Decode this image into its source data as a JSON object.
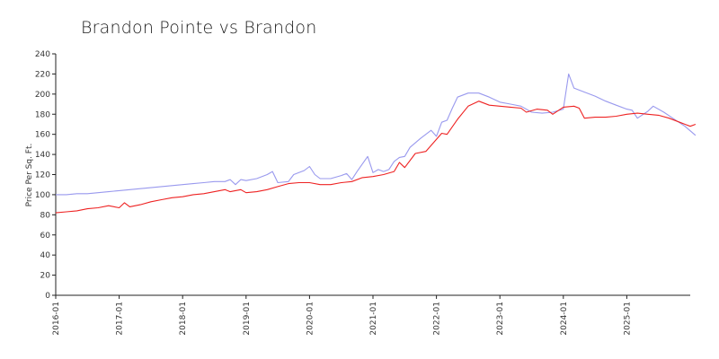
{
  "chart_data": {
    "type": "line",
    "title": "Brandon Pointe vs Brandon",
    "xlabel": "",
    "ylabel": "Price Per Sq. Ft.",
    "ylim": [
      0,
      240
    ],
    "yticks": [
      0,
      20,
      40,
      60,
      80,
      100,
      120,
      140,
      160,
      180,
      200,
      220,
      240
    ],
    "xlim": [
      "2016-01",
      "2026-01"
    ],
    "xticks": [
      "2016-01",
      "2017-01",
      "2018-01",
      "2019-01",
      "2020-01",
      "2021-01",
      "2022-01",
      "2023-01",
      "2024-01",
      "2025-01"
    ],
    "grid": false,
    "legend": "none",
    "series": [
      {
        "color": "#9999ee",
        "points": [
          [
            "2016-01",
            100
          ],
          [
            "2016-03",
            100
          ],
          [
            "2016-05",
            101
          ],
          [
            "2016-07",
            101
          ],
          [
            "2016-09",
            102
          ],
          [
            "2016-11",
            103
          ],
          [
            "2017-01",
            104
          ],
          [
            "2017-03",
            105
          ],
          [
            "2017-05",
            106
          ],
          [
            "2017-07",
            107
          ],
          [
            "2017-09",
            108
          ],
          [
            "2017-11",
            109
          ],
          [
            "2018-01",
            110
          ],
          [
            "2018-03",
            111
          ],
          [
            "2018-05",
            112
          ],
          [
            "2018-07",
            113
          ],
          [
            "2018-09",
            113
          ],
          [
            "2018-10",
            115
          ],
          [
            "2018-11",
            110
          ],
          [
            "2018-12",
            115
          ],
          [
            "2019-01",
            114
          ],
          [
            "2019-03",
            116
          ],
          [
            "2019-05",
            120
          ],
          [
            "2019-06",
            123
          ],
          [
            "2019-07",
            112
          ],
          [
            "2019-09",
            113
          ],
          [
            "2019-10",
            120
          ],
          [
            "2019-12",
            124
          ],
          [
            "2020-01",
            128
          ],
          [
            "2020-02",
            120
          ],
          [
            "2020-03",
            116
          ],
          [
            "2020-05",
            116
          ],
          [
            "2020-07",
            119
          ],
          [
            "2020-08",
            121
          ],
          [
            "2020-09",
            115
          ],
          [
            "2020-10",
            123
          ],
          [
            "2020-12",
            138
          ],
          [
            "2021-01",
            122
          ],
          [
            "2021-02",
            125
          ],
          [
            "2021-03",
            123
          ],
          [
            "2021-04",
            125
          ],
          [
            "2021-05",
            133
          ],
          [
            "2021-06",
            137
          ],
          [
            "2021-07",
            138
          ],
          [
            "2021-08",
            147
          ],
          [
            "2021-10",
            156
          ],
          [
            "2021-12",
            164
          ],
          [
            "2022-01",
            158
          ],
          [
            "2022-02",
            172
          ],
          [
            "2022-03",
            174
          ],
          [
            "2022-04",
            186
          ],
          [
            "2022-05",
            197
          ],
          [
            "2022-07",
            201
          ],
          [
            "2022-09",
            201
          ],
          [
            "2022-11",
            197
          ],
          [
            "2023-01",
            192
          ],
          [
            "2023-03",
            190
          ],
          [
            "2023-05",
            188
          ],
          [
            "2023-07",
            182
          ],
          [
            "2023-09",
            181
          ],
          [
            "2023-11",
            182
          ],
          [
            "2024-01",
            185
          ],
          [
            "2024-02",
            220
          ],
          [
            "2024-03",
            206
          ],
          [
            "2024-05",
            202
          ],
          [
            "2024-07",
            198
          ],
          [
            "2024-09",
            193
          ],
          [
            "2024-11",
            189
          ],
          [
            "2025-01",
            185
          ],
          [
            "2025-02",
            184
          ],
          [
            "2025-03",
            176
          ],
          [
            "2025-05",
            183
          ],
          [
            "2025-06",
            188
          ],
          [
            "2025-08",
            182
          ],
          [
            "2025-10",
            175
          ],
          [
            "2025-12",
            168
          ],
          [
            "2026-02",
            159
          ]
        ]
      },
      {
        "color": "#ee2222",
        "points": [
          [
            "2016-01",
            82
          ],
          [
            "2016-03",
            83
          ],
          [
            "2016-05",
            84
          ],
          [
            "2016-07",
            86
          ],
          [
            "2016-09",
            87
          ],
          [
            "2016-11",
            89
          ],
          [
            "2017-01",
            87
          ],
          [
            "2017-02",
            92
          ],
          [
            "2017-03",
            88
          ],
          [
            "2017-05",
            90
          ],
          [
            "2017-07",
            93
          ],
          [
            "2017-09",
            95
          ],
          [
            "2017-11",
            97
          ],
          [
            "2018-01",
            98
          ],
          [
            "2018-03",
            100
          ],
          [
            "2018-05",
            101
          ],
          [
            "2018-07",
            103
          ],
          [
            "2018-09",
            105
          ],
          [
            "2018-10",
            103
          ],
          [
            "2018-12",
            105
          ],
          [
            "2019-01",
            102
          ],
          [
            "2019-03",
            103
          ],
          [
            "2019-05",
            105
          ],
          [
            "2019-07",
            108
          ],
          [
            "2019-09",
            111
          ],
          [
            "2019-11",
            112
          ],
          [
            "2020-01",
            112
          ],
          [
            "2020-03",
            110
          ],
          [
            "2020-05",
            110
          ],
          [
            "2020-07",
            112
          ],
          [
            "2020-09",
            113
          ],
          [
            "2020-11",
            117
          ],
          [
            "2021-01",
            118
          ],
          [
            "2021-03",
            120
          ],
          [
            "2021-05",
            123
          ],
          [
            "2021-06",
            132
          ],
          [
            "2021-07",
            127
          ],
          [
            "2021-09",
            141
          ],
          [
            "2021-11",
            143
          ],
          [
            "2022-01",
            155
          ],
          [
            "2022-02",
            161
          ],
          [
            "2022-03",
            160
          ],
          [
            "2022-05",
            175
          ],
          [
            "2022-07",
            188
          ],
          [
            "2022-09",
            193
          ],
          [
            "2022-11",
            189
          ],
          [
            "2023-01",
            188
          ],
          [
            "2023-03",
            187
          ],
          [
            "2023-05",
            186
          ],
          [
            "2023-06",
            182
          ],
          [
            "2023-08",
            185
          ],
          [
            "2023-10",
            184
          ],
          [
            "2023-11",
            180
          ],
          [
            "2024-01",
            187
          ],
          [
            "2024-03",
            188
          ],
          [
            "2024-04",
            186
          ],
          [
            "2024-05",
            176
          ],
          [
            "2024-07",
            177
          ],
          [
            "2024-09",
            177
          ],
          [
            "2024-11",
            178
          ],
          [
            "2025-01",
            180
          ],
          [
            "2025-03",
            181
          ],
          [
            "2025-05",
            180
          ],
          [
            "2025-07",
            179
          ],
          [
            "2025-09",
            176
          ],
          [
            "2025-11",
            172
          ],
          [
            "2026-01",
            168
          ],
          [
            "2026-02",
            170
          ]
        ]
      }
    ]
  }
}
